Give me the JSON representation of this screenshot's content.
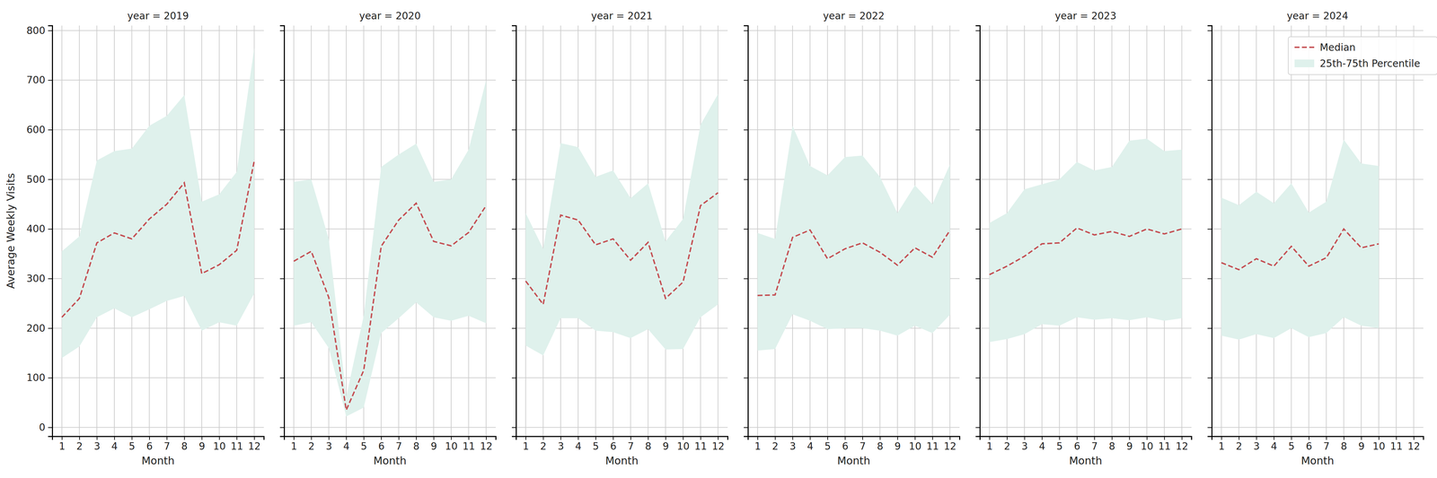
{
  "chart_data": [
    {
      "type": "line",
      "title": "year = 2019",
      "xlabel": "Month",
      "ylabel": "Average Weekly Visits",
      "x": [
        1,
        2,
        3,
        4,
        5,
        6,
        7,
        8,
        9,
        10,
        11,
        12
      ],
      "xlim": [
        0.45,
        12.55
      ],
      "xticks": [
        1,
        2,
        3,
        4,
        5,
        6,
        7,
        8,
        9,
        10,
        11,
        12
      ],
      "ylim": [
        -18,
        810
      ],
      "yticks": [
        0,
        100,
        200,
        300,
        400,
        500,
        600,
        700,
        800
      ],
      "grid": true,
      "series": [
        {
          "name": "Median",
          "color": "#c44e52",
          "line_style": "dashed",
          "values": [
            222,
            260,
            372,
            392,
            380,
            420,
            450,
            493,
            310,
            328,
            357,
            537
          ]
        },
        {
          "name": "25th-75th Percentile",
          "type": "band",
          "color": "#dff1ec",
          "low": [
            140,
            163,
            222,
            240,
            222,
            238,
            255,
            265,
            195,
            212,
            205,
            270
          ],
          "high": [
            355,
            385,
            538,
            557,
            562,
            608,
            628,
            670,
            455,
            470,
            515,
            765
          ]
        }
      ]
    },
    {
      "type": "line",
      "title": "year = 2020",
      "xlabel": "Month",
      "tick_labels": "x",
      "x": [
        1,
        2,
        3,
        4,
        5,
        6,
        7,
        8,
        9,
        10,
        11,
        12
      ],
      "xlim": [
        0.45,
        12.55
      ],
      "xticks": [
        1,
        2,
        3,
        4,
        5,
        6,
        7,
        8,
        9,
        10,
        11,
        12
      ],
      "ylim": [
        -18,
        810
      ],
      "yticks": [
        0,
        100,
        200,
        300,
        400,
        500,
        600,
        700,
        800
      ],
      "grid": true,
      "series": [
        {
          "name": "Median",
          "color": "#c44e52",
          "line_style": "dashed",
          "values": [
            335,
            355,
            262,
            35,
            115,
            365,
            418,
            452,
            375,
            366,
            393,
            447
          ]
        },
        {
          "name": "25th-75th Percentile",
          "type": "band",
          "color": "#dff1ec",
          "low": [
            205,
            212,
            160,
            22,
            40,
            190,
            220,
            252,
            222,
            215,
            225,
            210
          ],
          "high": [
            495,
            500,
            380,
            62,
            225,
            525,
            550,
            572,
            495,
            500,
            560,
            700
          ]
        }
      ]
    },
    {
      "type": "line",
      "title": "year = 2021",
      "xlabel": "Month",
      "tick_labels": "x",
      "x": [
        1,
        2,
        3,
        4,
        5,
        6,
        7,
        8,
        9,
        10,
        11,
        12
      ],
      "xlim": [
        0.45,
        12.55
      ],
      "xticks": [
        1,
        2,
        3,
        4,
        5,
        6,
        7,
        8,
        9,
        10,
        11,
        12
      ],
      "ylim": [
        -18,
        810
      ],
      "yticks": [
        0,
        100,
        200,
        300,
        400,
        500,
        600,
        700,
        800
      ],
      "grid": true,
      "series": [
        {
          "name": "Median",
          "color": "#c44e52",
          "line_style": "dashed",
          "values": [
            295,
            248,
            428,
            418,
            368,
            380,
            337,
            373,
            260,
            293,
            447,
            473
          ]
        },
        {
          "name": "25th-75th Percentile",
          "type": "band",
          "color": "#dff1ec",
          "low": [
            165,
            145,
            220,
            220,
            195,
            192,
            180,
            198,
            157,
            158,
            222,
            248
          ],
          "high": [
            432,
            360,
            573,
            565,
            505,
            518,
            462,
            492,
            375,
            420,
            610,
            672
          ]
        }
      ]
    },
    {
      "type": "line",
      "title": "year = 2022",
      "xlabel": "Month",
      "tick_labels": "x",
      "x": [
        1,
        2,
        3,
        4,
        5,
        6,
        7,
        8,
        9,
        10,
        11,
        12
      ],
      "xlim": [
        0.45,
        12.55
      ],
      "xticks": [
        1,
        2,
        3,
        4,
        5,
        6,
        7,
        8,
        9,
        10,
        11,
        12
      ],
      "ylim": [
        -18,
        810
      ],
      "yticks": [
        0,
        100,
        200,
        300,
        400,
        500,
        600,
        700,
        800
      ],
      "grid": true,
      "series": [
        {
          "name": "Median",
          "color": "#c44e52",
          "line_style": "dashed",
          "values": [
            266,
            267,
            383,
            398,
            340,
            360,
            372,
            353,
            327,
            362,
            343,
            397
          ]
        },
        {
          "name": "25th-75th Percentile",
          "type": "band",
          "color": "#dff1ec",
          "low": [
            155,
            158,
            228,
            215,
            198,
            200,
            200,
            195,
            185,
            205,
            190,
            227
          ],
          "high": [
            392,
            380,
            608,
            527,
            508,
            545,
            548,
            505,
            432,
            488,
            450,
            530
          ]
        }
      ]
    },
    {
      "type": "line",
      "title": "year = 2023",
      "xlabel": "Month",
      "tick_labels": "x",
      "x": [
        1,
        2,
        3,
        4,
        5,
        6,
        7,
        8,
        9,
        10,
        11,
        12
      ],
      "xlim": [
        0.45,
        12.55
      ],
      "xticks": [
        1,
        2,
        3,
        4,
        5,
        6,
        7,
        8,
        9,
        10,
        11,
        12
      ],
      "ylim": [
        -18,
        810
      ],
      "yticks": [
        0,
        100,
        200,
        300,
        400,
        500,
        600,
        700,
        800
      ],
      "grid": true,
      "series": [
        {
          "name": "Median",
          "color": "#c44e52",
          "line_style": "dashed",
          "values": [
            308,
            325,
            345,
            370,
            372,
            402,
            388,
            395,
            385,
            400,
            390,
            400
          ]
        },
        {
          "name": "25th-75th Percentile",
          "type": "band",
          "color": "#dff1ec",
          "low": [
            172,
            178,
            188,
            208,
            205,
            222,
            217,
            220,
            216,
            222,
            215,
            220
          ],
          "high": [
            412,
            432,
            480,
            490,
            500,
            535,
            518,
            525,
            578,
            582,
            557,
            560
          ]
        }
      ]
    },
    {
      "type": "line",
      "title": "year = 2024",
      "xlabel": "Month",
      "tick_labels": "x",
      "legend": "upper right",
      "x": [
        1,
        2,
        3,
        4,
        5,
        6,
        7,
        8,
        9,
        10
      ],
      "xlim": [
        0.45,
        12.55
      ],
      "xticks": [
        1,
        2,
        3,
        4,
        5,
        6,
        7,
        8,
        9,
        10,
        11,
        12
      ],
      "ylim": [
        -18,
        810
      ],
      "yticks": [
        0,
        100,
        200,
        300,
        400,
        500,
        600,
        700,
        800
      ],
      "grid": true,
      "series": [
        {
          "name": "Median",
          "color": "#c44e52",
          "line_style": "dashed",
          "values": [
            332,
            318,
            340,
            325,
            365,
            325,
            342,
            400,
            362,
            370
          ]
        },
        {
          "name": "25th-75th Percentile",
          "type": "band",
          "color": "#dff1ec",
          "low": [
            185,
            177,
            188,
            180,
            200,
            182,
            190,
            222,
            205,
            200
          ],
          "high": [
            463,
            448,
            475,
            452,
            492,
            433,
            455,
            580,
            532,
            527
          ]
        }
      ]
    }
  ]
}
